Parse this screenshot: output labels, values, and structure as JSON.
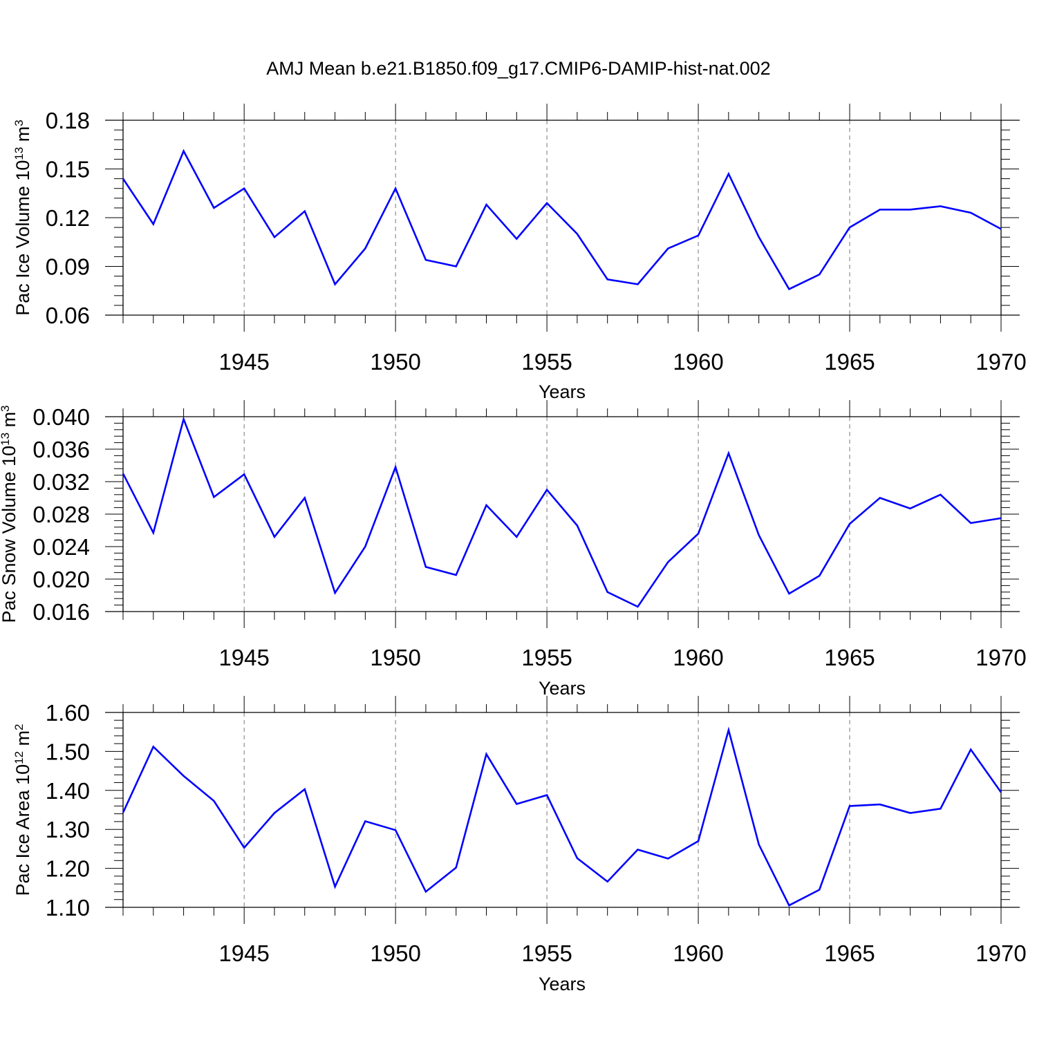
{
  "figure": {
    "title": "AMJ Mean b.e21.B1850.f09_g17.CMIP6-DAMIP-hist-nat.002",
    "line_color": "#0000ff"
  },
  "chart_data": [
    {
      "type": "line",
      "xlabel": "Years",
      "ylabel_base": "Pac Ice Volume 10",
      "ylabel_exp1": "13",
      "ylabel_unit": " m",
      "ylabel_exp2": "3",
      "xlim": [
        1941,
        1970
      ],
      "ylim": [
        0.06,
        0.18
      ],
      "xticks": [
        1945,
        1950,
        1955,
        1960,
        1965,
        1970
      ],
      "yticks": [
        0.06,
        0.09,
        0.12,
        0.15,
        0.18
      ],
      "ytick_labels": [
        "0.06",
        "0.09",
        "0.12",
        "0.15",
        "0.18"
      ],
      "grid": "vertical dashed at major x ticks",
      "x": [
        1941,
        1942,
        1943,
        1944,
        1945,
        1946,
        1947,
        1948,
        1949,
        1950,
        1951,
        1952,
        1953,
        1954,
        1955,
        1956,
        1957,
        1958,
        1959,
        1960,
        1961,
        1962,
        1963,
        1964,
        1965,
        1966,
        1967,
        1968,
        1969,
        1970
      ],
      "values": [
        0.144,
        0.116,
        0.161,
        0.126,
        0.138,
        0.108,
        0.124,
        0.079,
        0.101,
        0.138,
        0.094,
        0.09,
        0.128,
        0.107,
        0.129,
        0.11,
        0.082,
        0.079,
        0.101,
        0.109,
        0.147,
        0.108,
        0.076,
        0.085,
        0.114,
        0.125,
        0.125,
        0.127,
        0.123,
        0.113
      ]
    },
    {
      "type": "line",
      "xlabel": "Years",
      "ylabel_base": "Pac Snow Volume 10",
      "ylabel_exp1": "13",
      "ylabel_unit": " m",
      "ylabel_exp2": "3",
      "xlim": [
        1941,
        1970
      ],
      "ylim": [
        0.016,
        0.04
      ],
      "xticks": [
        1945,
        1950,
        1955,
        1960,
        1965,
        1970
      ],
      "yticks": [
        0.016,
        0.02,
        0.024,
        0.028,
        0.032,
        0.036,
        0.04
      ],
      "ytick_labels": [
        "0.016",
        "0.020",
        "0.024",
        "0.028",
        "0.032",
        "0.036",
        "0.040"
      ],
      "grid": "vertical dashed at major x ticks",
      "x": [
        1941,
        1942,
        1943,
        1944,
        1945,
        1946,
        1947,
        1948,
        1949,
        1950,
        1951,
        1952,
        1953,
        1954,
        1955,
        1956,
        1957,
        1958,
        1959,
        1960,
        1961,
        1962,
        1963,
        1964,
        1965,
        1966,
        1967,
        1968,
        1969,
        1970
      ],
      "values": [
        0.033,
        0.0257,
        0.0397,
        0.0301,
        0.0329,
        0.0252,
        0.03,
        0.0183,
        0.024,
        0.0338,
        0.0215,
        0.0205,
        0.0291,
        0.0252,
        0.031,
        0.0266,
        0.0184,
        0.0166,
        0.0221,
        0.0256,
        0.0355,
        0.0254,
        0.0182,
        0.0204,
        0.0268,
        0.03,
        0.0287,
        0.0304,
        0.0269,
        0.0275
      ]
    },
    {
      "type": "line",
      "xlabel": "Years",
      "ylabel_base": "Pac Ice Area 10",
      "ylabel_exp1": "12",
      "ylabel_unit": " m",
      "ylabel_exp2": "2",
      "xlim": [
        1941,
        1970
      ],
      "ylim": [
        1.1,
        1.6
      ],
      "xticks": [
        1945,
        1950,
        1955,
        1960,
        1965,
        1970
      ],
      "yticks": [
        1.1,
        1.2,
        1.3,
        1.4,
        1.5,
        1.6
      ],
      "ytick_labels": [
        "1.10",
        "1.20",
        "1.30",
        "1.40",
        "1.50",
        "1.60"
      ],
      "grid": "vertical dashed at major x ticks",
      "x": [
        1941,
        1942,
        1943,
        1944,
        1945,
        1946,
        1947,
        1948,
        1949,
        1950,
        1951,
        1952,
        1953,
        1954,
        1955,
        1956,
        1957,
        1958,
        1959,
        1960,
        1961,
        1962,
        1963,
        1964,
        1965,
        1966,
        1967,
        1968,
        1969,
        1970
      ],
      "values": [
        1.343,
        1.512,
        1.437,
        1.373,
        1.253,
        1.342,
        1.403,
        1.153,
        1.321,
        1.298,
        1.14,
        1.202,
        1.493,
        1.365,
        1.388,
        1.226,
        1.166,
        1.248,
        1.225,
        1.27,
        1.555,
        1.261,
        1.105,
        1.145,
        1.36,
        1.364,
        1.342,
        1.353,
        1.505,
        1.395
      ]
    }
  ]
}
